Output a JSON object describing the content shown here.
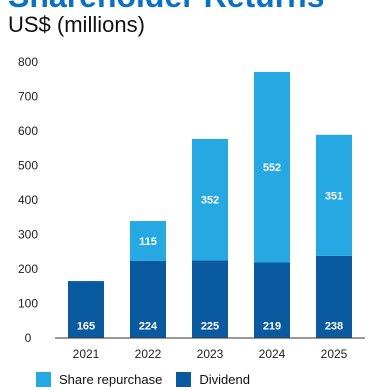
{
  "header": {
    "title": "Shareholder Returns",
    "subtitle": "US$ (millions)"
  },
  "colors": {
    "share_repurchase": "#26a8e2",
    "dividend": "#0a5aa0",
    "axis": "#333333"
  },
  "legend": {
    "items": [
      {
        "label": "Share repurchase",
        "color": "#26a8e2"
      },
      {
        "label": "Dividend",
        "color": "#0a5aa0"
      }
    ]
  },
  "chart_data": {
    "type": "bar",
    "stacked": true,
    "title": "Shareholder Returns",
    "subtitle": "US$ (millions)",
    "categories": [
      "2021",
      "2022",
      "2023",
      "2024",
      "2025"
    ],
    "series": [
      {
        "name": "Dividend",
        "values": [
          165,
          224,
          225,
          219,
          238
        ]
      },
      {
        "name": "Share repurchase",
        "values": [
          0,
          115,
          352,
          552,
          351
        ]
      }
    ],
    "data_labels": {
      "Dividend": [
        "165",
        "224",
        "225",
        "219",
        "238"
      ],
      "Share repurchase": [
        "",
        "115",
        "352",
        "552",
        "351"
      ]
    },
    "ylim": [
      0,
      800
    ],
    "yticks": [
      0,
      100,
      200,
      300,
      400,
      500,
      600,
      700,
      800
    ],
    "xlabel": "",
    "ylabel": "",
    "grid": false,
    "legend_position": "bottom-left"
  }
}
